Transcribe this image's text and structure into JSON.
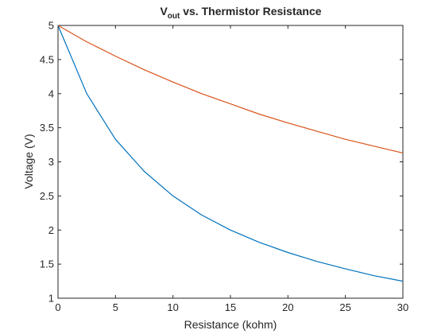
{
  "chart_data": {
    "type": "line",
    "title": {
      "main": "V",
      "subscript": "out",
      "rest": " vs. Thermistor Resistance"
    },
    "xlabel": "Resistance (kohm)",
    "ylabel": "Voltage (V)",
    "xlim": [
      0,
      30
    ],
    "ylim": [
      1,
      5
    ],
    "xticks": [
      0,
      5,
      10,
      15,
      20,
      25,
      30
    ],
    "yticks": [
      1,
      1.5,
      2,
      2.5,
      3,
      3.5,
      4,
      4.5,
      5
    ],
    "grid": false,
    "x": [
      0,
      2.5,
      5,
      7.5,
      10,
      12.5,
      15,
      17.5,
      20,
      22.5,
      25,
      27.5,
      30
    ],
    "series": [
      {
        "color": "#0072BD",
        "values": [
          5.0,
          4.0,
          3.33,
          2.86,
          2.5,
          2.22,
          2.0,
          1.82,
          1.67,
          1.54,
          1.43,
          1.33,
          1.25
        ]
      },
      {
        "color": "#D95319",
        "values": [
          5.0,
          4.76,
          4.55,
          4.35,
          4.17,
          4.0,
          3.85,
          3.7,
          3.57,
          3.45,
          3.33,
          3.23,
          3.13
        ]
      }
    ]
  }
}
